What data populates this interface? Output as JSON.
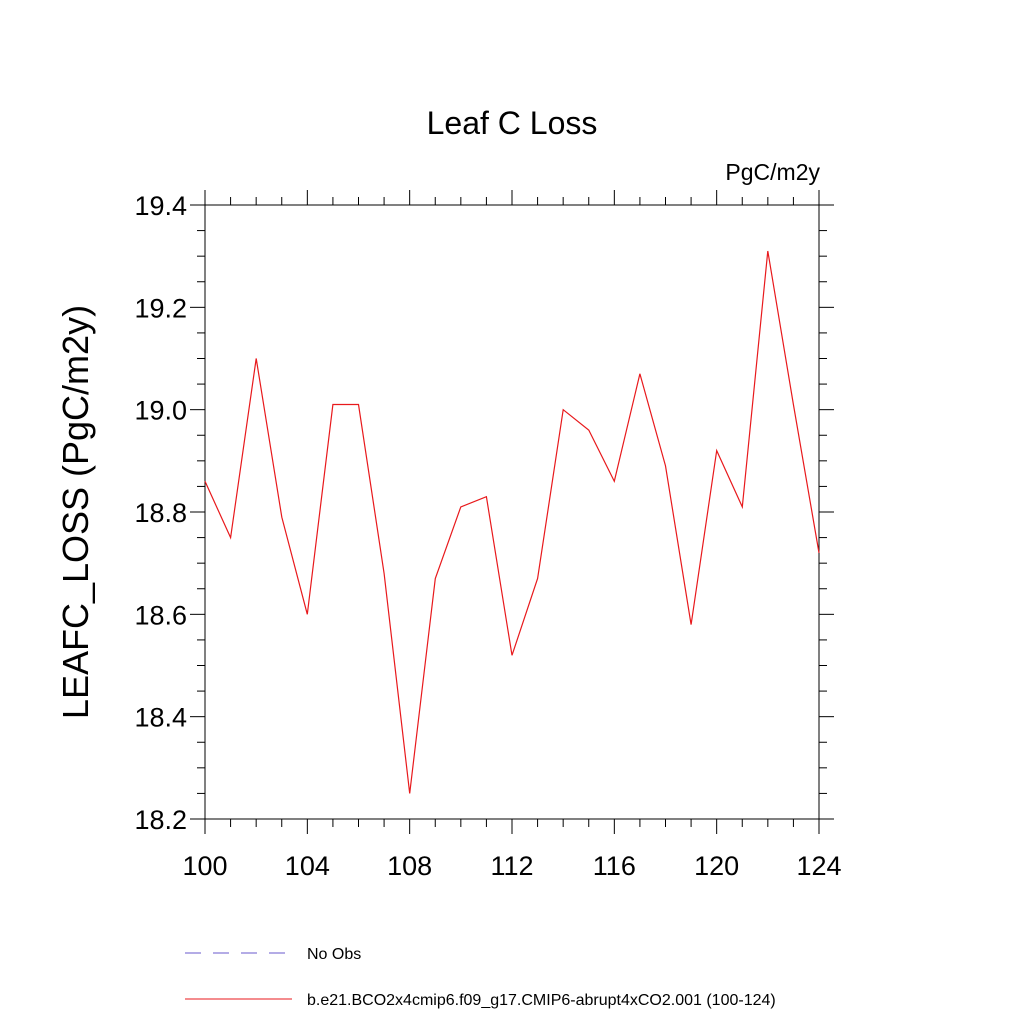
{
  "chart_data": {
    "type": "line",
    "title": "Leaf C Loss",
    "units": "PgC/m2y",
    "xlabel": "",
    "ylabel": "LEAFC_LOSS  (PgC/m2y)",
    "xlim": [
      100,
      124
    ],
    "ylim": [
      18.2,
      19.4
    ],
    "x_ticks": [
      100,
      104,
      108,
      112,
      116,
      120,
      124
    ],
    "x_tick_labels": [
      "100",
      "104",
      "108",
      "112",
      "116",
      "120",
      "124"
    ],
    "y_ticks": [
      18.2,
      18.4,
      18.6,
      18.8,
      19.0,
      19.2,
      19.4
    ],
    "y_tick_labels": [
      "18.2",
      "18.4",
      "18.6",
      "18.8",
      "19.0",
      "19.2",
      "19.4"
    ],
    "grid": false,
    "legend_position": "bottom",
    "series": [
      {
        "name": "b.e21.BCO2x4cmip6.f09_g17.CMIP6-abrupt4xCO2.001 (100-124)",
        "color": "#e8191c",
        "style": "solid",
        "x": [
          100,
          101,
          102,
          103,
          104,
          105,
          106,
          107,
          108,
          109,
          110,
          111,
          112,
          113,
          114,
          115,
          116,
          117,
          118,
          119,
          120,
          121,
          122,
          123,
          124
        ],
        "values": [
          18.86,
          18.75,
          19.1,
          18.79,
          18.6,
          19.01,
          19.01,
          18.68,
          18.25,
          18.67,
          18.81,
          18.83,
          18.52,
          18.67,
          19.0,
          18.96,
          18.86,
          19.07,
          18.89,
          18.58,
          18.92,
          18.81,
          19.31,
          19.01,
          18.72
        ]
      }
    ],
    "legend": [
      {
        "label": "No Obs",
        "color": "#6a5acd",
        "style": "dashed"
      },
      {
        "label": "b.e21.BCO2x4cmip6.f09_g17.CMIP6-abrupt4xCO2.001 (100-124)",
        "color": "#e8191c",
        "style": "solid"
      }
    ]
  }
}
